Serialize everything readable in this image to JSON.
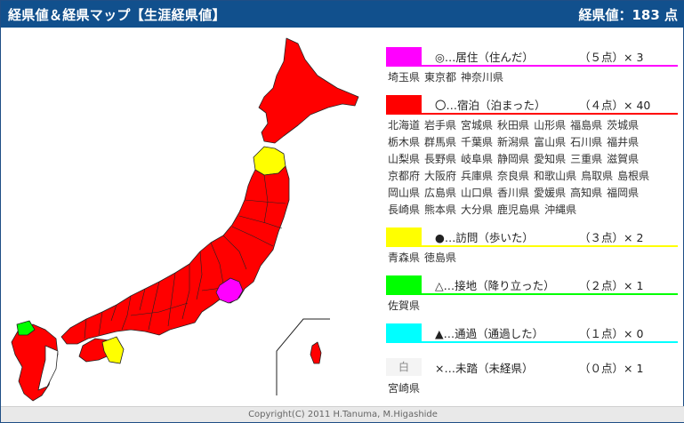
{
  "header": {
    "title": "経県値＆経県マップ【生涯経県値】",
    "score": "経県値：183 点"
  },
  "colors": {
    "header_bg": "#11508d",
    "live": "#ff00ff",
    "stay": "#ff0000",
    "visit": "#ffff00",
    "land": "#00ff00",
    "pass": "#00ffff",
    "unvisited": "#ffffff"
  },
  "legend": [
    {
      "key": "live",
      "label": "◎…居住（住んだ）",
      "points": "（５点）× 3",
      "color": "#ff00ff",
      "prefs": [
        "埼玉県",
        "東京都",
        "神奈川県"
      ]
    },
    {
      "key": "stay",
      "label": "〇…宿泊（泊まった）",
      "points": "（４点）× 40",
      "color": "#ff0000",
      "prefs": [
        "北海道",
        "岩手県",
        "宮城県",
        "秋田県",
        "山形県",
        "福島県",
        "茨城県",
        "栃木県",
        "群馬県",
        "千葉県",
        "新潟県",
        "富山県",
        "石川県",
        "福井県",
        "山梨県",
        "長野県",
        "岐阜県",
        "静岡県",
        "愛知県",
        "三重県",
        "滋賀県",
        "京都府",
        "大阪府",
        "兵庫県",
        "奈良県",
        "和歌山県",
        "鳥取県",
        "島根県",
        "岡山県",
        "広島県",
        "山口県",
        "香川県",
        "愛媛県",
        "高知県",
        "福岡県",
        "長崎県",
        "熊本県",
        "大分県",
        "鹿児島県",
        "沖縄県"
      ]
    },
    {
      "key": "visit",
      "label": "●…訪問（歩いた）",
      "points": "（３点）× 2",
      "color": "#ffff00",
      "prefs": [
        "青森県",
        "徳島県"
      ]
    },
    {
      "key": "land",
      "label": "△…接地（降り立った）",
      "points": "（２点）× 1",
      "color": "#00ff00",
      "prefs": [
        "佐賀県"
      ]
    },
    {
      "key": "pass",
      "label": "▲…通過（通過した）",
      "points": "（１点）× 0",
      "color": "#00ffff",
      "prefs": []
    },
    {
      "key": "unvisited",
      "label": "×…未踏（未経県）",
      "points": "（０点）× 1",
      "color": "#ffffff",
      "swatch_text": "白",
      "prefs": [
        "宮崎県"
      ]
    }
  ],
  "footer": {
    "copyright": "Copyright(C) 2011 H.Tanuma, M.Higashide"
  }
}
